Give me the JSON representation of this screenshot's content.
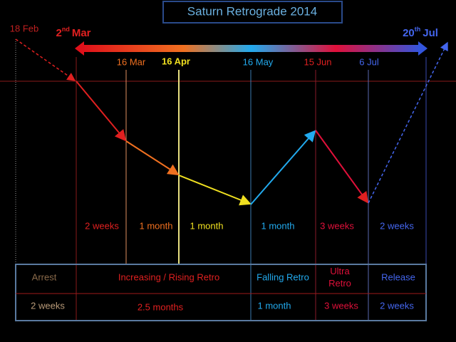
{
  "title": "Saturn Retrograde 2014",
  "start_label": {
    "number": "2",
    "suffix": "nd",
    "month": "Mar"
  },
  "end_label": {
    "number": "20",
    "suffix": "th",
    "month": "Jul"
  },
  "pre_label": "18 Feb",
  "dates": [
    "16 Mar",
    "16 Apr",
    "16 May",
    "15 Jun",
    "6 Jul"
  ],
  "durations": [
    "2 weeks",
    "1 month",
    "1 month",
    "1 month",
    "3 weeks",
    "2 weeks"
  ],
  "table": {
    "rows": [
      [
        "Arrest",
        "Increasing / Rising Retro",
        "Falling Retro",
        "Ultra Retro",
        "Release"
      ],
      [
        "2 weeks",
        "2.5 months",
        "1 month",
        "3 weeks",
        "2 weeks"
      ]
    ]
  }
}
